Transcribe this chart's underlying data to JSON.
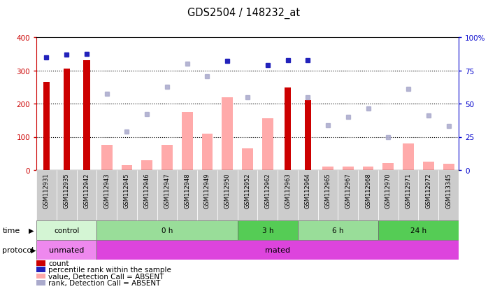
{
  "title": "GDS2504 / 148232_at",
  "samples": [
    "GSM112931",
    "GSM112935",
    "GSM112942",
    "GSM112943",
    "GSM112945",
    "GSM112946",
    "GSM112947",
    "GSM112948",
    "GSM112949",
    "GSM112950",
    "GSM112952",
    "GSM112962",
    "GSM112963",
    "GSM112964",
    "GSM112965",
    "GSM112967",
    "GSM112968",
    "GSM112970",
    "GSM112971",
    "GSM112972",
    "GSM113345"
  ],
  "count_values": [
    265,
    305,
    330,
    null,
    null,
    null,
    null,
    null,
    null,
    null,
    null,
    null,
    248,
    210,
    null,
    null,
    null,
    null,
    null,
    null,
    null
  ],
  "count_absent_values": [
    null,
    null,
    null,
    75,
    15,
    30,
    75,
    175,
    110,
    220,
    65,
    155,
    null,
    null,
    10,
    10,
    10,
    22,
    80,
    25,
    20
  ],
  "percentile_rank": [
    340,
    348,
    349,
    null,
    null,
    null,
    null,
    null,
    null,
    328,
    null,
    316,
    330,
    330,
    null,
    null,
    null,
    null,
    null,
    null,
    null
  ],
  "rank_absent": [
    null,
    null,
    null,
    230,
    115,
    168,
    250,
    320,
    283,
    null,
    218,
    null,
    null,
    218,
    135,
    160,
    185,
    100,
    245,
    165,
    133
  ],
  "ylim_left": [
    0,
    400
  ],
  "yticks_left": [
    0,
    100,
    200,
    300,
    400
  ],
  "yticks_right": [
    0,
    25,
    50,
    75,
    100
  ],
  "ytick_right_labels": [
    "0",
    "25",
    "50",
    "75",
    "100%"
  ],
  "grid_values": [
    100,
    200,
    300
  ],
  "time_groups": [
    {
      "label": "control",
      "start": 0,
      "end": 3,
      "color": "#d4f5d4"
    },
    {
      "label": "0 h",
      "start": 3,
      "end": 10,
      "color": "#99dd99"
    },
    {
      "label": "3 h",
      "start": 10,
      "end": 13,
      "color": "#55cc55"
    },
    {
      "label": "6 h",
      "start": 13,
      "end": 17,
      "color": "#99dd99"
    },
    {
      "label": "24 h",
      "start": 17,
      "end": 21,
      "color": "#55cc55"
    }
  ],
  "protocol_groups": [
    {
      "label": "unmated",
      "start": 0,
      "end": 3,
      "color": "#ee88ee"
    },
    {
      "label": "mated",
      "start": 3,
      "end": 21,
      "color": "#dd44dd"
    }
  ],
  "bar_color_present": "#cc0000",
  "bar_color_absent": "#ffaaaa",
  "dot_color_present": "#2222bb",
  "dot_color_absent": "#aaaacc",
  "left_tick_color": "#cc0000",
  "right_tick_color": "#0000cc",
  "xlabels_bg": "#cccccc",
  "legend_labels": [
    "count",
    "percentile rank within the sample",
    "value, Detection Call = ABSENT",
    "rank, Detection Call = ABSENT"
  ],
  "legend_colors": [
    "#cc0000",
    "#2222bb",
    "#ffaaaa",
    "#aaaacc"
  ]
}
